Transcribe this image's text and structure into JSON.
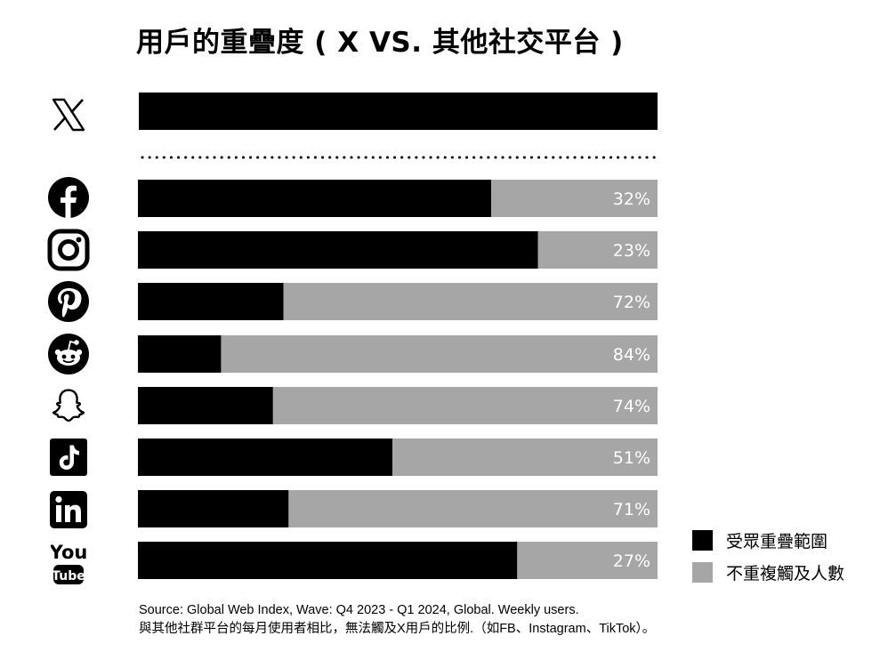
{
  "title": "用戶的重疊度 ( X  VS.  其他社交平台 )",
  "legend": [
    {
      "label": "受眾重疊範圍",
      "color": "#000000"
    },
    {
      "label": "不重複觸及人數",
      "color": "#a6a6a6"
    }
  ],
  "source": {
    "line1": "Source: Global Web Index, Wave: Q4 2023 - Q1 2024, Global. Weekly users.",
    "line2": "與其他社群平台的每月使用者相比，無法觸及X用戶的比例.（如FB、Instagram、TikTok）。"
  },
  "colors": {
    "overlap": "#000000",
    "unique": "#a6a6a6",
    "label": "#ffffff"
  },
  "chart_data": {
    "type": "bar",
    "orientation": "horizontal",
    "stacked": true,
    "reference": {
      "platform": "X",
      "icon": "x-logo-icon",
      "value": 100
    },
    "categories": [
      "Facebook",
      "Instagram",
      "Pinterest",
      "Reddit",
      "Snapchat",
      "TikTok",
      "LinkedIn",
      "YouTube"
    ],
    "icons": [
      "facebook-icon",
      "instagram-icon",
      "pinterest-icon",
      "reddit-icon",
      "snapchat-icon",
      "tiktok-icon",
      "linkedin-icon",
      "youtube-icon"
    ],
    "series": [
      {
        "name": "受眾重疊範圍",
        "values": [
          68,
          77,
          28,
          16,
          26,
          49,
          29,
          73
        ]
      },
      {
        "name": "不重複觸及人數",
        "values": [
          32,
          23,
          72,
          84,
          74,
          51,
          71,
          27
        ]
      }
    ],
    "labels": [
      "32%",
      "23%",
      "72%",
      "84%",
      "74%",
      "51%",
      "71%",
      "27%"
    ],
    "xlim": [
      0,
      100
    ],
    "grid": false,
    "legend_position": "bottom-right"
  }
}
